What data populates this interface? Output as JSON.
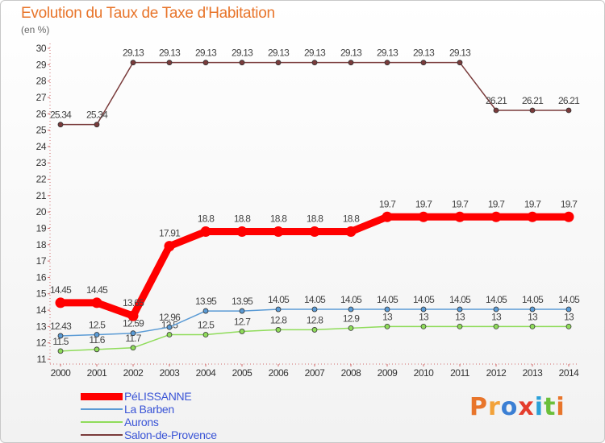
{
  "title": "Evolution du Taux de Taxe d'Habitation",
  "subtitle": "(en %)",
  "logo_text": "Proxiti",
  "logo_colors": [
    "#e8752b",
    "#f2a23a",
    "#3b7fd4",
    "#e43d2d",
    "#2aa0d8",
    "#6bbf3a",
    "#e8752b"
  ],
  "chart_data": {
    "type": "line",
    "title": "Evolution du Taux de Taxe d'Habitation",
    "ylabel": "(en %)",
    "xlabel": "",
    "x": [
      "2000",
      "2001",
      "2002",
      "2003",
      "2004",
      "2005",
      "2006",
      "2007",
      "2008",
      "2009",
      "2010",
      "2011",
      "2012",
      "2013",
      "2014"
    ],
    "ylim": [
      11,
      30
    ],
    "yticks": [
      11,
      12,
      13,
      14,
      15,
      16,
      17,
      18,
      19,
      20,
      21,
      22,
      23,
      24,
      25,
      26,
      27,
      28,
      29,
      30
    ],
    "grid": false,
    "legend_position": "bottom-left",
    "series": [
      {
        "name": "PéLISSANNE",
        "color": "#ff0000",
        "values": [
          14.45,
          14.45,
          13.65,
          17.91,
          18.8,
          18.8,
          18.8,
          18.8,
          18.8,
          19.7,
          19.7,
          19.7,
          19.7,
          19.7,
          19.7
        ],
        "labels": [
          "14.45",
          "14.45",
          "13.65",
          "17.91",
          "18.8",
          "18.8",
          "18.8",
          "18.8",
          "18.8",
          "19.7",
          "19.7",
          "19.7",
          "19.7",
          "19.7",
          "19.7"
        ]
      },
      {
        "name": "La Barben",
        "color": "#5b9bd5",
        "values": [
          12.43,
          12.5,
          12.59,
          12.96,
          13.95,
          13.95,
          14.05,
          14.05,
          14.05,
          14.05,
          14.05,
          14.05,
          14.05,
          14.05,
          14.05
        ],
        "labels": [
          "12.43",
          "12.5",
          "12.59",
          "12.96",
          "13.95",
          "13.95",
          "14.05",
          "14.05",
          "14.05",
          "14.05",
          "14.05",
          "14.05",
          "14.05",
          "14.05",
          "14.05"
        ]
      },
      {
        "name": "Aurons",
        "color": "#8fdc5a",
        "values": [
          11.5,
          11.6,
          11.7,
          12.5,
          12.5,
          12.7,
          12.8,
          12.8,
          12.9,
          13,
          13,
          13,
          13,
          13,
          13
        ],
        "labels": [
          "11.5",
          "11.6",
          "11.7",
          "12.5",
          "12.5",
          "12.7",
          "12.8",
          "12.8",
          "12.9",
          "13",
          "13",
          "13",
          "13",
          "13",
          "13"
        ]
      },
      {
        "name": "Salon-de-Provence",
        "color": "#7a3b3b",
        "values": [
          25.34,
          25.34,
          29.13,
          29.13,
          29.13,
          29.13,
          29.13,
          29.13,
          29.13,
          29.13,
          29.13,
          29.13,
          26.21,
          26.21,
          26.21
        ],
        "labels": [
          "25.34",
          "25.34",
          "29.13",
          "29.13",
          "29.13",
          "29.13",
          "29.13",
          "29.13",
          "29.13",
          "29.13",
          "29.13",
          "29.13",
          "26.21",
          "26.21",
          "26.21"
        ]
      }
    ]
  }
}
